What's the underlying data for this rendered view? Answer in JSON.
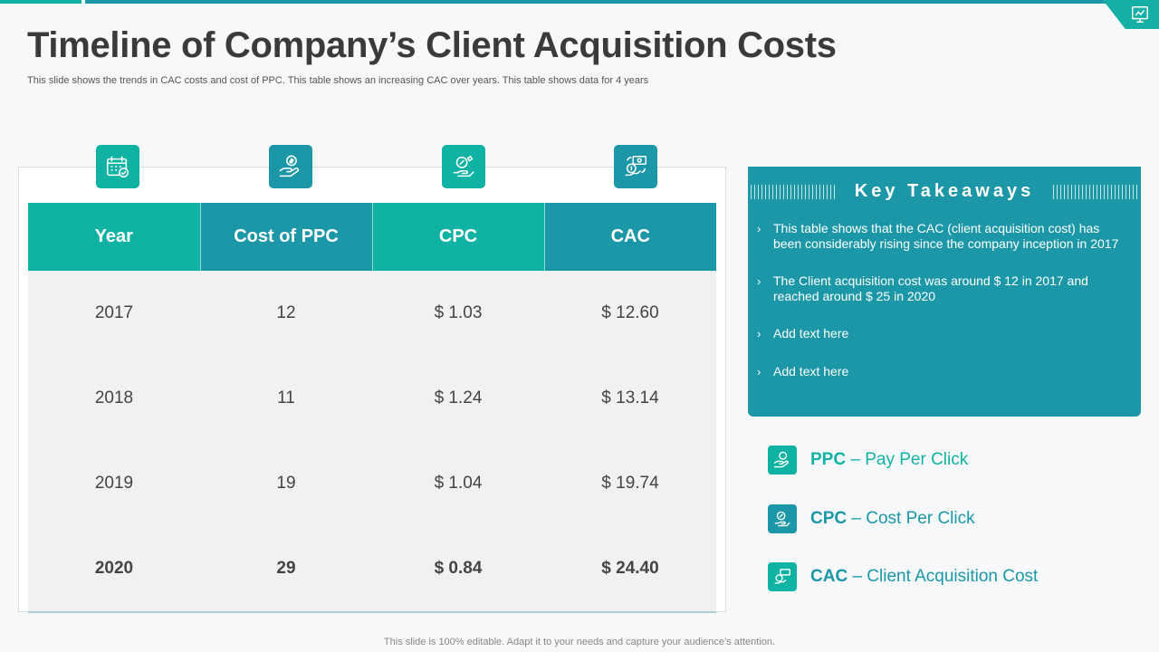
{
  "slide": {
    "title": "Timeline of Company’s Client Acquisition Costs",
    "subtitle": "This slide shows the trends in CAC costs and cost of PPC. This table shows an increasing CAC over years. This table shows data for 4 years",
    "footer": "This slide is 100% editable. Adapt it to your needs and capture your audience’s attention."
  },
  "colors": {
    "teal": "#10b3a3",
    "blue": "#1b97a8",
    "row_bg": "#f1f1f2",
    "text": "#3a3a3a"
  },
  "header_icons": [
    "calendar-check-icon",
    "hand-coin-icon",
    "hand-money-percent-icon",
    "money-exchange-icon"
  ],
  "table": {
    "columns": [
      "Year",
      "Cost of PPC",
      "CPC",
      "CAC"
    ],
    "rows": [
      [
        "2017",
        "12",
        "$ 1.03",
        "$ 12.60"
      ],
      [
        "2018",
        "11",
        "$ 1.24",
        "$ 13.14"
      ],
      [
        "2019",
        "19",
        "$ 1.04",
        "$ 19.74"
      ],
      [
        "2020",
        "29",
        "$ 0.84",
        "$ 24.40"
      ]
    ]
  },
  "takeaways": {
    "title": "Key Takeaways",
    "bullet_glyph": "›",
    "items": [
      "This table shows that the CAC (client acquisition cost) has been considerably rising since the company inception in 2017",
      "The Client acquisition cost was around $ 12 in 2017 and reached around $ 25 in 2020",
      "Add text here",
      "Add text here"
    ]
  },
  "legend": [
    {
      "abbr": "PPC",
      "sep": " – ",
      "desc": "Pay Per Click",
      "icon": "hand-coin-icon",
      "color": "#10b3a3"
    },
    {
      "abbr": "CPC",
      "sep": " – ",
      "desc": "Cost Per Click",
      "icon": "hand-money-percent-icon",
      "color": "#1b97a8"
    },
    {
      "abbr": "CAC",
      "sep": " – ",
      "desc": "Client Acquisition Cost",
      "icon": "money-exchange-icon",
      "color": "#10b3a3"
    }
  ]
}
